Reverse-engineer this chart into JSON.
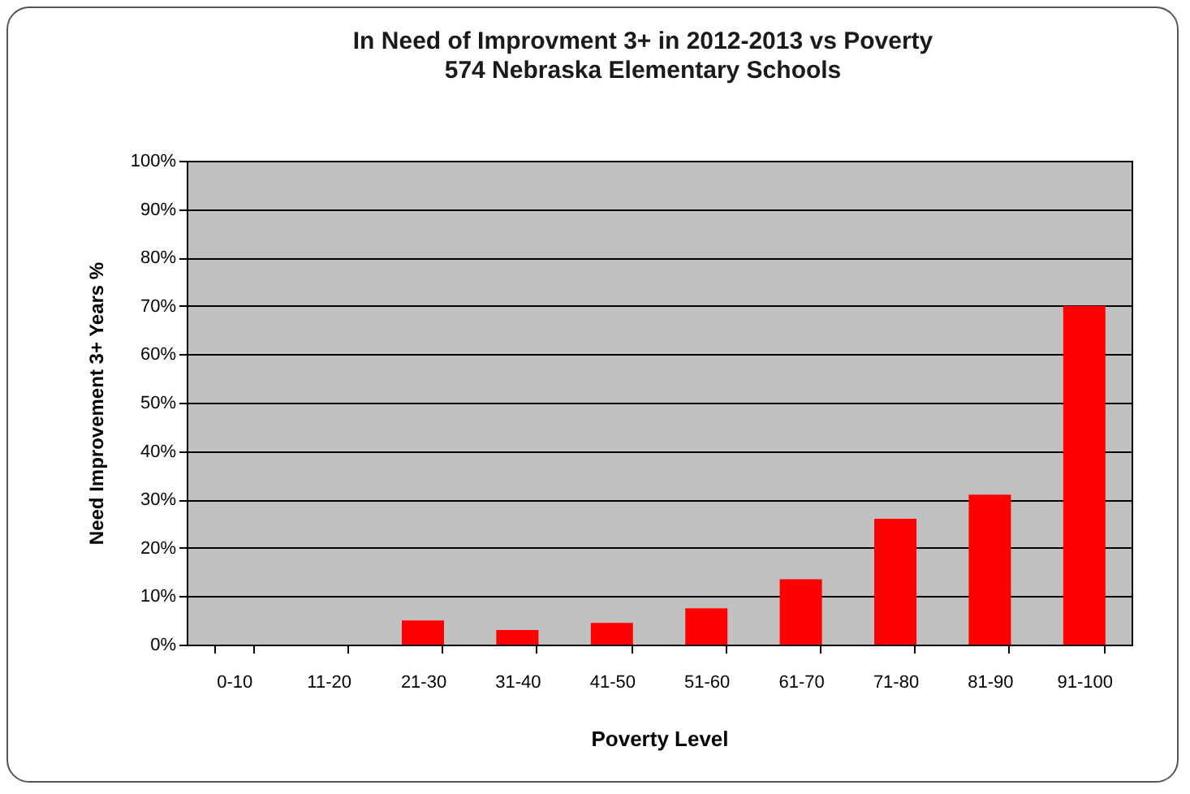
{
  "chart_data": {
    "type": "bar",
    "title": "In Need of Improvment 3+ in 2012-2013 vs Poverty",
    "subtitle": "574 Nebraska Elementary Schools",
    "xlabel": "Poverty Level",
    "ylabel": "Need Improvement 3+ Years %",
    "categories": [
      "0-10",
      "11-20",
      "21-30",
      "31-40",
      "41-50",
      "51-60",
      "61-70",
      "71-80",
      "81-90",
      "91-100"
    ],
    "values": [
      0,
      0,
      5,
      3,
      4.5,
      7.5,
      13.5,
      26,
      31,
      70
    ],
    "color": "#ff0000",
    "ylim": [
      0,
      100
    ],
    "yticks": [
      {
        "value": 0,
        "label": "0%"
      },
      {
        "value": 10,
        "label": "10%"
      },
      {
        "value": 20,
        "label": "20%"
      },
      {
        "value": 30,
        "label": "30%"
      },
      {
        "value": 40,
        "label": "40%"
      },
      {
        "value": 50,
        "label": "50%"
      },
      {
        "value": 60,
        "label": "60%"
      },
      {
        "value": 70,
        "label": "70%"
      },
      {
        "value": 80,
        "label": "80%"
      },
      {
        "value": 90,
        "label": "90%"
      },
      {
        "value": 100,
        "label": "100%"
      }
    ],
    "grid": "y"
  }
}
